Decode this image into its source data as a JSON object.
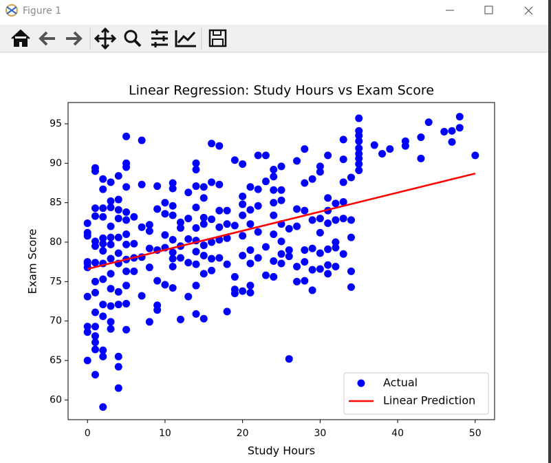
{
  "window": {
    "title": "Figure 1"
  },
  "chart_data": {
    "type": "scatter",
    "title": "Linear Regression: Study Hours vs Exam Score",
    "x_label": "Study Hours",
    "y_label": "Exam Score",
    "xlim": [
      -2.5,
      52.5
    ],
    "xticks": [
      0,
      10,
      20,
      30,
      40,
      50
    ],
    "ylim": [
      57.5,
      97.7
    ],
    "yticks": [
      60,
      65,
      70,
      75,
      80,
      85,
      90,
      95
    ],
    "grid": false,
    "legend": "lower right",
    "series": [
      {
        "name": "Actual",
        "type": "scatter",
        "color": "#0000ff",
        "x": [
          0,
          0,
          0,
          0,
          0,
          0,
          0,
          0,
          0,
          0,
          1,
          1,
          1,
          1,
          1,
          1,
          1,
          1,
          1,
          1,
          1,
          1,
          1,
          1,
          1,
          2,
          2,
          2,
          2,
          2,
          2,
          2,
          2,
          2,
          2,
          2,
          2,
          2,
          2,
          3,
          3,
          3,
          3,
          3,
          3,
          3,
          3,
          3,
          3,
          3,
          3,
          4,
          4,
          4,
          4,
          4,
          4,
          4,
          4,
          4,
          4,
          4,
          4,
          5,
          5,
          5,
          5,
          5,
          5,
          5,
          5,
          5,
          5,
          5,
          5,
          5,
          6,
          6,
          6,
          6,
          7,
          7,
          7,
          7,
          7,
          8,
          8,
          8,
          8,
          8,
          9,
          9,
          9,
          9,
          9,
          9,
          10,
          10,
          10,
          10,
          10,
          11,
          11,
          11,
          11,
          11,
          11,
          11,
          11,
          11,
          12,
          12,
          12,
          12,
          12,
          13,
          13,
          13,
          13,
          13,
          14,
          14,
          14,
          14,
          14,
          14,
          14,
          14,
          14,
          14,
          15,
          15,
          15,
          15,
          15,
          15,
          15,
          15,
          16,
          16,
          16,
          16,
          16,
          16,
          17,
          17,
          17,
          17,
          17,
          17,
          18,
          18,
          18,
          18,
          18,
          19,
          19,
          19,
          19,
          19,
          20,
          20,
          20,
          20,
          20,
          20,
          20,
          21,
          21,
          21,
          21,
          21,
          21,
          21,
          22,
          22,
          22,
          22,
          22,
          23,
          23,
          23,
          23,
          24,
          24,
          24,
          24,
          24,
          24,
          24,
          24,
          25,
          25,
          25,
          25,
          25,
          25,
          25,
          26,
          26,
          26,
          26,
          27,
          27,
          27,
          27,
          27,
          28,
          28,
          28,
          28,
          28,
          28,
          29,
          29,
          29,
          29,
          29,
          30,
          30,
          30,
          30,
          30,
          30,
          31,
          31,
          31,
          31,
          31,
          31,
          31,
          32,
          32,
          32,
          32,
          32,
          33,
          33,
          33,
          33,
          33,
          33,
          34,
          34,
          34,
          34,
          34,
          35,
          35,
          35,
          35,
          35,
          35,
          35,
          35,
          35,
          37,
          38,
          39,
          41,
          41,
          43,
          43,
          44,
          46,
          47,
          47,
          48,
          48,
          50
        ],
        "values": [
          82.4,
          81.2,
          80.8,
          77.3,
          76.8,
          73.1,
          69.3,
          68.6,
          65.0,
          77.5,
          89.4,
          89.0,
          84.3,
          83.3,
          80.1,
          79.5,
          77.4,
          75.0,
          73.6,
          71.1,
          69.3,
          68.1,
          67.3,
          66.4,
          63.2,
          88.0,
          86.7,
          84.3,
          83.2,
          80.5,
          79.8,
          78.9,
          77.3,
          75.3,
          72.1,
          70.6,
          66.3,
          65.5,
          59.1,
          87.6,
          85.2,
          84.4,
          82.0,
          80.6,
          79.7,
          77.9,
          76.0,
          74.1,
          71.9,
          69.9,
          69.0,
          88.4,
          85.4,
          84.1,
          83.0,
          80.6,
          78.6,
          77.3,
          73.7,
          72.1,
          65.5,
          64.2,
          61.5,
          93.4,
          90.0,
          89.5,
          87.0,
          83.8,
          82.8,
          81.0,
          79.7,
          77.8,
          76.3,
          74.5,
          72.2,
          68.9,
          83.2,
          79.8,
          78.0,
          76.3,
          92.9,
          87.3,
          81.9,
          78.1,
          73.2,
          82.2,
          81.4,
          79.2,
          76.8,
          69.9,
          87.1,
          84.2,
          79.0,
          75.1,
          72.0,
          71.4,
          85.0,
          83.6,
          80.9,
          79.3,
          74.6,
          87.5,
          86.8,
          84.6,
          83.4,
          80.3,
          78.7,
          77.9,
          76.9,
          74.2,
          82.5,
          81.8,
          79.5,
          78.0,
          70.2,
          86.3,
          83.0,
          80.4,
          77.4,
          73.1,
          90.0,
          89.2,
          87.1,
          84.4,
          81.8,
          80.2,
          78.8,
          77.2,
          74.5,
          70.9,
          87.0,
          85.6,
          83.1,
          82.3,
          79.6,
          78.3,
          76.0,
          70.3,
          92.5,
          87.6,
          82.9,
          80.0,
          77.9,
          76.4,
          92.2,
          87.3,
          84.0,
          81.9,
          80.3,
          78.0,
          84.0,
          82.3,
          80.5,
          77.2,
          71.2,
          90.4,
          82.1,
          75.6,
          74.0,
          73.5,
          89.9,
          85.8,
          84.8,
          83.4,
          80.8,
          78.3,
          73.8,
          87.0,
          84.1,
          82.3,
          79.0,
          77.3,
          74.5,
          73.6,
          91.0,
          86.7,
          84.6,
          81.3,
          78.0,
          91.0,
          87.7,
          79.4,
          75.8,
          89.2,
          88.3,
          86.6,
          85.0,
          83.4,
          81.0,
          77.6,
          75.6,
          89.6,
          86.6,
          85.3,
          82.3,
          80.1,
          78.5,
          77.3,
          81.7,
          79.0,
          78.2,
          65.2,
          90.3,
          84.2,
          82.0,
          76.9,
          75.0,
          91.8,
          87.5,
          84.0,
          79.0,
          77.5,
          75.1,
          88.0,
          82.8,
          79.2,
          76.5,
          73.9,
          89.6,
          88.9,
          83.0,
          81.2,
          78.6,
          76.6,
          91.0,
          85.6,
          84.0,
          82.4,
          79.1,
          77.1,
          76.0,
          84.9,
          82.8,
          80.0,
          79.3,
          76.9,
          93.0,
          90.5,
          87.6,
          85.1,
          83.0,
          78.5,
          88.2,
          82.8,
          80.6,
          76.3,
          74.3,
          95.7,
          94.1,
          93.5,
          92.8,
          91.9,
          91.2,
          90.6,
          89.9,
          89.1,
          92.3,
          91.2,
          91.8,
          92.8,
          92.2,
          93.3,
          90.6,
          95.2,
          94.0,
          94.1,
          92.7,
          95.9,
          94.5,
          91.0
        ]
      },
      {
        "name": "Linear Prediction",
        "type": "line",
        "color": "#ff0000",
        "x": [
          0,
          50
        ],
        "values": [
          76.6,
          88.7
        ]
      }
    ]
  }
}
